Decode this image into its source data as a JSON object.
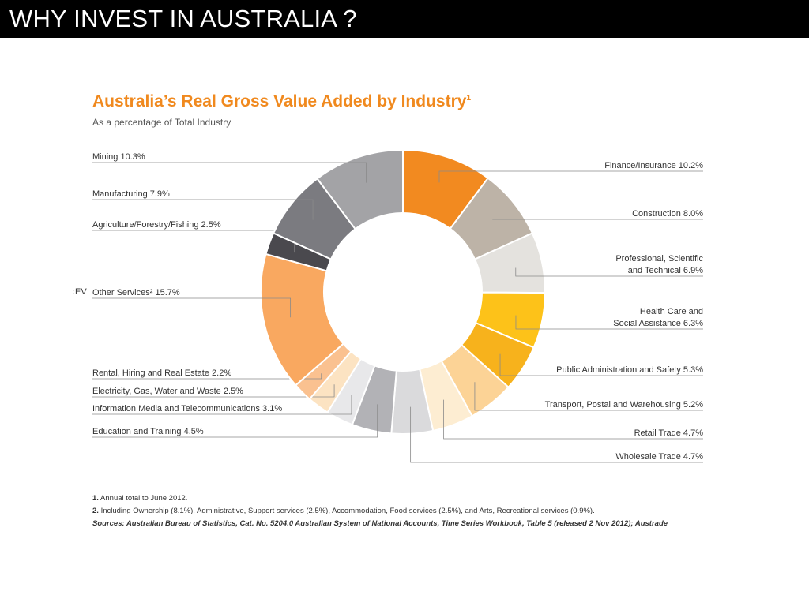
{
  "slide": {
    "title": "WHY INVEST IN AUSTRALIA ?",
    "stray_text": ":EV"
  },
  "chart_data": {
    "type": "pie",
    "variant": "donut",
    "title": "Australia’s Real Gross Value Added by Industry",
    "title_footnote": "1",
    "subtitle": "As a percentage of Total Industry",
    "slices": [
      {
        "label": "Finance/Insurance 10.2%",
        "value": 10.2,
        "color": "#F28A20",
        "side": "right"
      },
      {
        "label": "Construction 8.0%",
        "value": 8.0,
        "color": "#BDB3A7",
        "side": "right"
      },
      {
        "label": "Professional, Scientific|and Technical 6.9%",
        "value": 6.9,
        "color": "#E4E2DE",
        "side": "right"
      },
      {
        "label": "Health Care and|Social Assistance 6.3%",
        "value": 6.3,
        "color": "#FDC219",
        "side": "right"
      },
      {
        "label": "Public Administration and Safety 5.3%",
        "value": 5.3,
        "color": "#F7B21C",
        "side": "right"
      },
      {
        "label": "Transport, Postal and Warehousing 5.2%",
        "value": 5.2,
        "color": "#FCD396",
        "side": "right"
      },
      {
        "label": "Retail Trade 4.7%",
        "value": 4.7,
        "color": "#FDEDD2",
        "side": "right"
      },
      {
        "label": "Wholesale Trade  4.7%",
        "value": 4.7,
        "color": "#DADADC",
        "side": "right"
      },
      {
        "label": "Education and Training 4.5%",
        "value": 4.5,
        "color": "#B2B2B6",
        "side": "left"
      },
      {
        "label": "Information Media and Telecommunications 3.1%",
        "value": 3.1,
        "color": "#E8E8EA",
        "side": "left"
      },
      {
        "label": "Electricity, Gas, Water and Waste 2.5%",
        "value": 2.5,
        "color": "#FCE3C2",
        "side": "left"
      },
      {
        "label": "Rental, Hiring and Real Estate 2.2%",
        "value": 2.2,
        "color": "#FAC190",
        "side": "left"
      },
      {
        "label": "Other Services² 15.7%",
        "value": 15.7,
        "color": "#F9A860",
        "side": "left"
      },
      {
        "label": "Agriculture/Forestry/Fishing 2.5%",
        "value": 2.5,
        "color": "#4A494E",
        "side": "left"
      },
      {
        "label": "Manufacturing 7.9%",
        "value": 7.9,
        "color": "#7B7B80",
        "side": "left"
      },
      {
        "label": "Mining 10.3%",
        "value": 10.3,
        "color": "#A3A3A6",
        "side": "left"
      }
    ]
  },
  "notes": {
    "n1_num": "1.",
    "n1_text": " Annual total to June 2012.",
    "n2_num": "2.",
    "n2_text": " Including Ownership (8.1%), Administrative, Support services (2.5%), Accommodation, Food services (2.5%), and Arts, Recreational services (0.9%).",
    "sources": "Sources: Australian Bureau of Statistics, Cat. No. 5204.0 Australian System of National Accounts, Time Series Workbook, Table 5 (released 2 Nov 2012); Austrade"
  }
}
